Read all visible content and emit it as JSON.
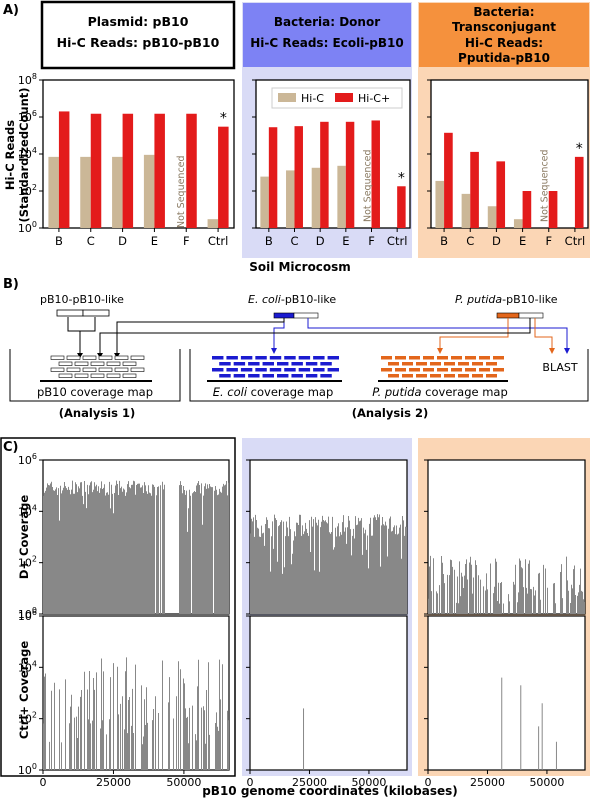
{
  "panel_labels": {
    "a": "A)",
    "b": "B)",
    "c": "C)"
  },
  "colors": {
    "hic": "#cbb797",
    "hicplus": "#e31b1b",
    "donor_bg": "#d9dbf6",
    "donor_header": "#7d82f4",
    "trans_bg": "#fbd6b5",
    "trans_header": "#f5913d",
    "blue": "#1b1bd0",
    "orange": "#e3661b",
    "coverage": "#888888"
  },
  "headers": {
    "plasmid": {
      "line1": "Plasmid: pB10",
      "line2": "Hi-C Reads: pB10-pB10"
    },
    "donor": {
      "line1": "Bacteria: Donor",
      "line2": "Hi-C Reads: Ecoli-pB10"
    },
    "trans": {
      "line1": "Bacteria:",
      "line2": "Transconjugant",
      "line3": "Hi-C Reads:",
      "line4": "Pputida-pB10"
    }
  },
  "panelA": {
    "ylabel_line1": "Hi-C Reads",
    "ylabel_line2": "(StandardizedCount)",
    "xlabel": "Soil Microcosm",
    "legend": [
      "Hi-C",
      "Hi-C+"
    ],
    "not_sequenced": "Not Sequenced",
    "asterisk": "*",
    "yticks": [
      "10",
      "10",
      "10",
      "10",
      "10"
    ],
    "ytick_exps": [
      "0",
      "2",
      "4",
      "6",
      "8"
    ]
  },
  "chart_data": [
    {
      "type": "bar",
      "title": "Plasmid: pB10 / Hi-C Reads: pB10-pB10",
      "ylabel": "Hi-C Reads (StandardizedCount)",
      "xlabel": "Soil Microcosm",
      "yscale": "log",
      "ylim": [
        1,
        100000000
      ],
      "categories": [
        "B",
        "C",
        "D",
        "E",
        "F",
        "Ctrl"
      ],
      "series": [
        {
          "name": "Hi-C",
          "values": [
            7000,
            7000,
            7000,
            9000,
            null,
            3
          ]
        },
        {
          "name": "Hi-C+",
          "values": [
            2000000,
            1500000,
            1500000,
            1500000,
            1500000,
            300000
          ]
        }
      ]
    },
    {
      "type": "bar",
      "title": "Bacteria: Donor / Hi-C Reads: Ecoli-pB10",
      "yscale": "log",
      "ylim": [
        1,
        100000000
      ],
      "categories": [
        "B",
        "C",
        "D",
        "E",
        "F",
        "Ctrl"
      ],
      "series": [
        {
          "name": "Hi-C",
          "values": [
            600,
            1300,
            1800,
            2300,
            null,
            null
          ]
        },
        {
          "name": "Hi-C+",
          "values": [
            280000,
            320000,
            550000,
            550000,
            650000,
            180
          ]
        }
      ]
    },
    {
      "type": "bar",
      "title": "Bacteria: Transconjugant / Hi-C Reads: Pputida-pB10",
      "yscale": "log",
      "ylim": [
        1,
        100000000
      ],
      "categories": [
        "B",
        "C",
        "D",
        "E",
        "F",
        "Ctrl"
      ],
      "series": [
        {
          "name": "Hi-C",
          "values": [
            350,
            70,
            15,
            3,
            null,
            null
          ]
        },
        {
          "name": "Hi-C+",
          "values": [
            140000,
            13000,
            4000,
            100,
            100,
            7000
          ]
        }
      ]
    }
  ],
  "panelB": {
    "pb10_like": "pB10-pB10-like",
    "ecoli_italic": "E. coli",
    "ecoli_rest": "-pB10-like",
    "putida_italic": "P. putida",
    "putida_rest": "-pB10-like",
    "pb10_map": "pB10 coverage map",
    "ecoli_map_italic": "E. coli",
    "putida_map_italic": "P. putida",
    "map_rest": " coverage map",
    "blast": "BLAST",
    "analysis1": "(Analysis 1)",
    "analysis2": "(Analysis 2)"
  },
  "panelC": {
    "row1_label": "D+ Coverage",
    "row2_label": "Ctrl+ Coverage",
    "xlabel": "pB10 genome coordinates (kilobases)",
    "xticks": [
      "0",
      "25000",
      "50000"
    ]
  }
}
